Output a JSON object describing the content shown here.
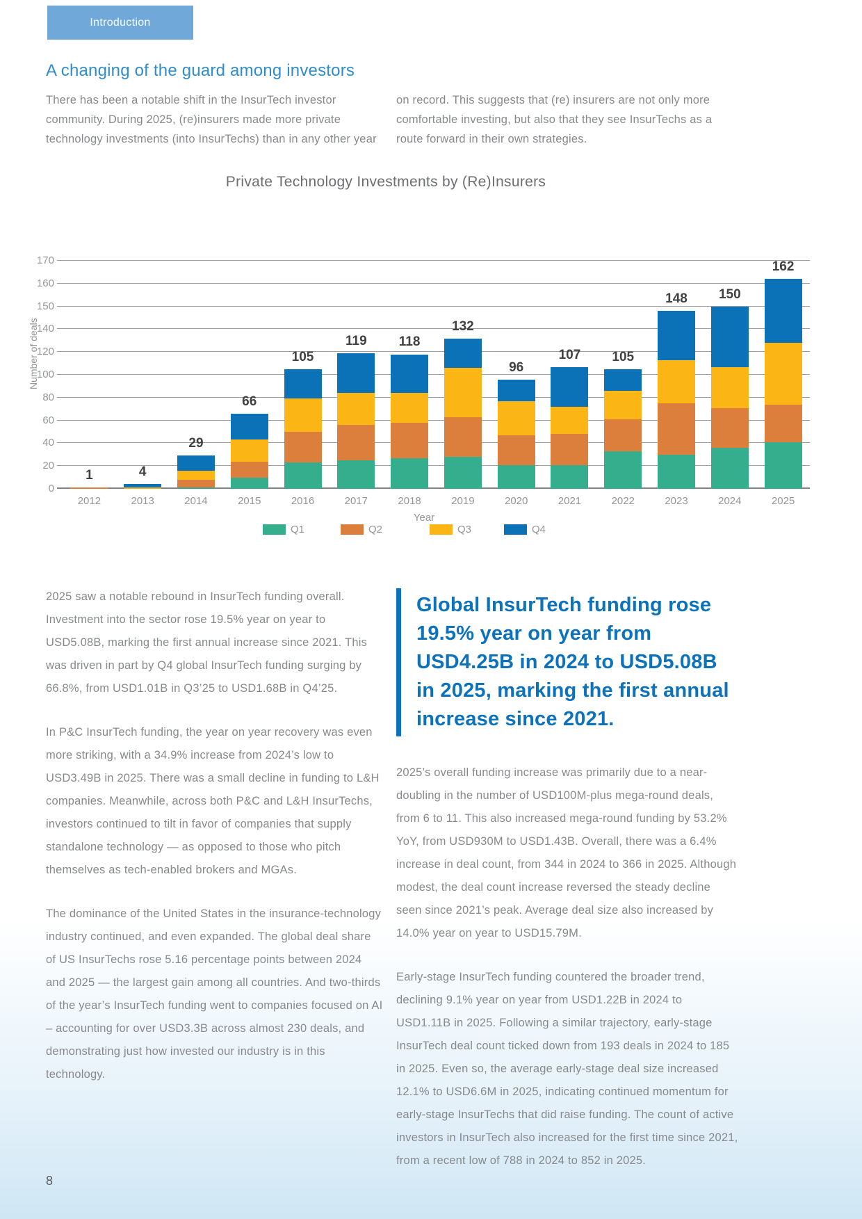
{
  "tab": {
    "label": "Introduction"
  },
  "heading": "A changing of the guard among investors",
  "intro": {
    "col_left": "There has been a notable shift in the InsurTech investor community. During 2025, (re)insurers made more private technology investments (into InsurTechs) than in any other year",
    "col_right": "on record. This suggests that (re) insurers are not only more comfortable investing, but also that they see InsurTechs as a route forward in their own strategies."
  },
  "chart_data": {
    "type": "bar",
    "stacked": true,
    "title": "Private Technology Investments by (Re)Insurers",
    "xlabel": "Year",
    "ylabel": "Number of deals",
    "categories": [
      "2012",
      "2013",
      "2014",
      "2015",
      "2016",
      "2017",
      "2018",
      "2019",
      "2020",
      "2021",
      "2022",
      "2023",
      "2024",
      "2025"
    ],
    "totals": [
      1,
      4,
      29,
      66,
      105,
      119,
      118,
      132,
      96,
      107,
      105,
      148,
      150,
      162
    ],
    "series": [
      {
        "name": "Q1",
        "color": "#35ae8d",
        "values": [
          0,
          0,
          1,
          10,
          23,
          25,
          27,
          28,
          21,
          21,
          33,
          30,
          36,
          41
        ]
      },
      {
        "name": "Q2",
        "color": "#dc7f3c",
        "values": [
          1,
          0,
          7,
          14,
          27,
          31,
          31,
          35,
          26,
          27,
          28,
          45,
          35,
          33
        ]
      },
      {
        "name": "Q3",
        "color": "#fbb616",
        "values": [
          0,
          1,
          8,
          19,
          29,
          28,
          26,
          43,
          30,
          24,
          25,
          38,
          36,
          54
        ]
      },
      {
        "name": "Q4",
        "color": "#0b72b8",
        "values": [
          0,
          3,
          13,
          23,
          26,
          35,
          34,
          26,
          19,
          35,
          19,
          35,
          43,
          34
        ]
      }
    ],
    "y_ticks": [
      0,
      20,
      40,
      60,
      80,
      100,
      120,
      140,
      150,
      160,
      170
    ],
    "ylim": [
      0,
      170
    ],
    "grid": true,
    "legend_position": "bottom",
    "axis_note": "gridlines evenly spaced; scale compresses above 140 (ticks every 10)"
  },
  "body_left": {
    "paragraphs": [
      "2025 saw a notable rebound in InsurTech funding overall. Investment into the sector rose 19.5% year on year to USD5.08B, marking the first annual increase since 2021. This was driven in part by Q4 global InsurTech funding surging by 66.8%, from USD1.01B in Q3’25 to USD1.68B in Q4’25.",
      "In P&C InsurTech funding, the year on year recovery was even more striking, with a 34.9% increase from 2024’s low to USD3.49B in 2025. There was a small decline in funding to L&H companies. Meanwhile, across both P&C and L&H InsurTechs, investors continued to tilt in favor of companies that supply standalone technology — as opposed to those who pitch themselves as tech-enabled brokers and MGAs.",
      "The dominance of the United States in the insurance-technology industry continued, and even expanded. The global deal share of US InsurTechs rose 5.16 percentage points between 2024 and 2025 — the largest gain among all countries. And two-thirds of the year’s InsurTech funding went to companies focused on AI – accounting for over USD3.3B across almost 230 deals, and demonstrating just how invested our industry is in this technology."
    ]
  },
  "pullquote": "Global InsurTech funding rose 19.5% year on year from USD4.25B in 2024 to USD5.08B in 2025, marking the first annual increase since 2021.",
  "body_right": {
    "paragraphs": [
      "2025’s overall funding increase was primarily due to a near-doubling in the number of USD100M-plus mega-round deals, from 6 to 11. This also increased mega-round funding by 53.2% YoY, from USD930M to USD1.43B. Overall, there was a 6.4% increase in deal count, from 344 in 2024 to 366 in 2025. Although modest, the deal count increase reversed the steady decline seen since 2021’s peak. Average deal size also increased by 14.0% year on year to USD15.79M.",
      "Early-stage InsurTech funding countered the broader trend, declining 9.1% year on year from USD1.22B in 2024 to USD1.11B in 2025. Following a similar trajectory, early-stage InsurTech deal count ticked down from 193 deals in 2024 to 185 in 2025. Even so, the average early-stage deal size increased 12.1% to USD6.6M in 2025, indicating continued momentum for early-stage InsurTechs that did raise funding. The count of active investors in InsurTech also increased for the first time since 2021, from a recent low of 788 in 2024 to 852 in 2025."
    ]
  },
  "page_number": "8",
  "colors": {
    "tab_background": "#71a8da",
    "heading_blue": "#2e8ecd",
    "pullquote_blue": "#0c72bc",
    "body_gray": "#87898c",
    "q1_green": "#35ae8d",
    "q2_orange": "#dc7f3c",
    "q3_gold": "#fbb616",
    "q4_blue": "#0b72b8"
  }
}
